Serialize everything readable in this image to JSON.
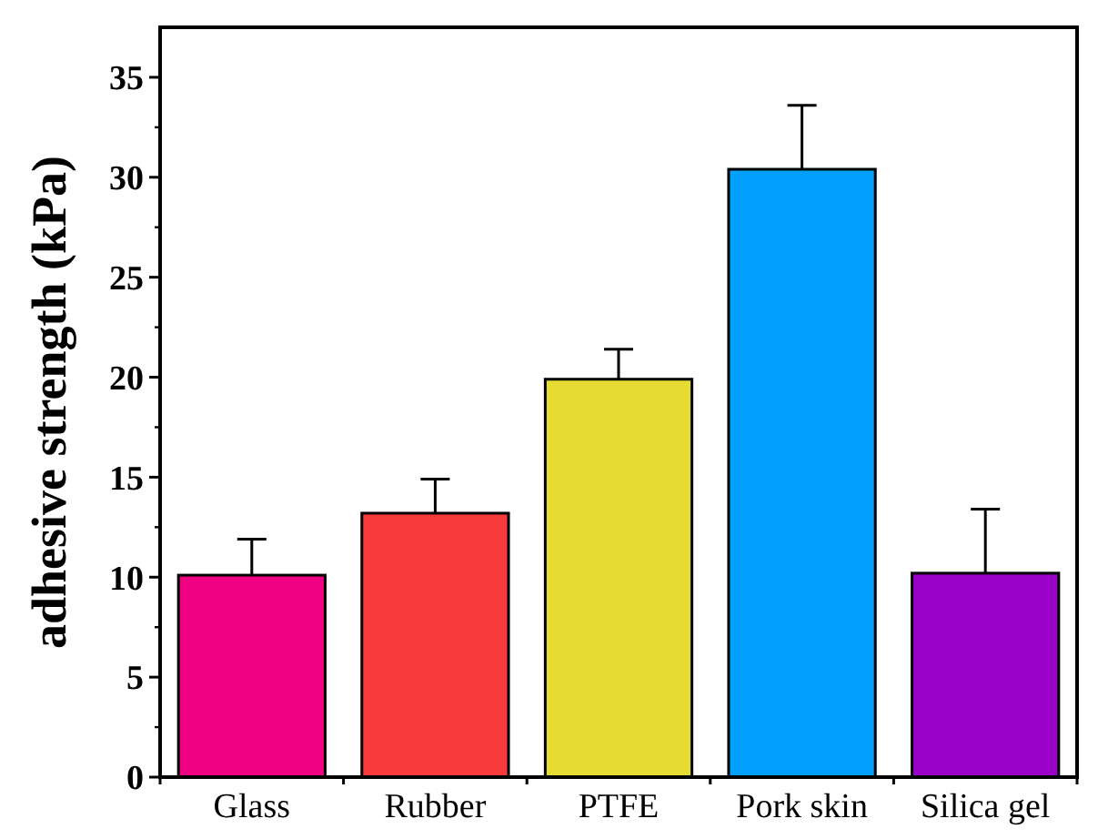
{
  "chart_data": {
    "type": "bar",
    "ylabel": "adhesive strength (kPa)",
    "categories": [
      "Glass",
      "Rubber",
      "PTFE",
      "Pork skin",
      "Silica gel"
    ],
    "values": [
      10.1,
      13.2,
      19.9,
      30.4,
      10.2
    ],
    "colors": [
      "#ef0383",
      "#f93a3c",
      "#e6db33",
      "#039ffc",
      "#9b02c8"
    ],
    "errors": [
      [
        10.1,
        11.9
      ],
      [
        13.2,
        14.9
      ],
      [
        19.9,
        21.4
      ],
      [
        30.4,
        33.6
      ],
      [
        10.2,
        13.4
      ]
    ],
    "ylim": [
      0,
      37.5
    ],
    "yticks": [
      0,
      5,
      10,
      15,
      20,
      25,
      30,
      35
    ]
  }
}
